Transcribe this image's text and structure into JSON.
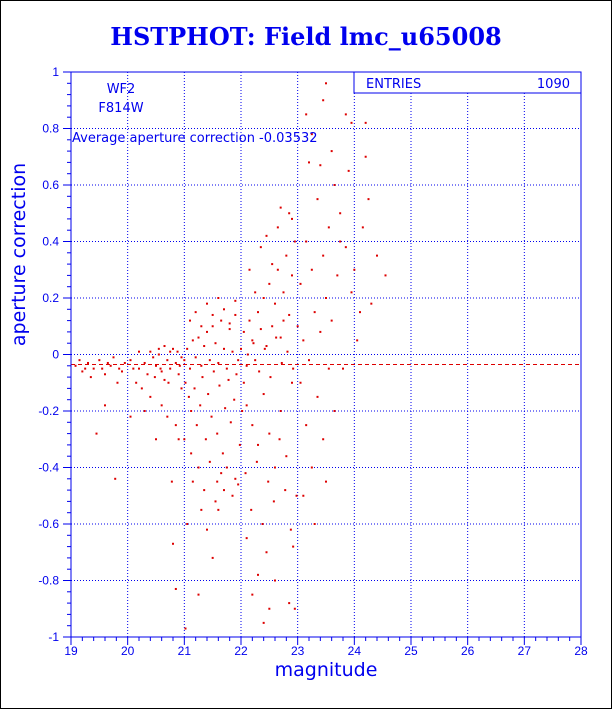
{
  "title": "HSTPHOT: Field lmc_u65008",
  "colors": {
    "axis": "#0000ee",
    "points": "#dd0000",
    "frame": "#000000"
  },
  "chart_data": {
    "type": "scatter",
    "title": "HSTPHOT: Field lmc_u65008",
    "xlabel": "magnitude",
    "ylabel": "aperture correction",
    "xlim": [
      19,
      28
    ],
    "ylim": [
      -1,
      1
    ],
    "x_ticks": [
      "19",
      "20",
      "21",
      "22",
      "23",
      "24",
      "25",
      "26",
      "27",
      "28"
    ],
    "y_ticks": [
      "-1",
      "-0.8",
      "-0.6",
      "-0.4",
      "-0.2",
      "0",
      "0.2",
      "0.4",
      "0.6",
      "0.8",
      "1"
    ],
    "grid": true,
    "camera": "WF2",
    "filter": "F814W",
    "average_label": "Average aperture correction",
    "average_value": -0.03532,
    "stats_box": {
      "label": "ENTRIES",
      "value": "1090"
    },
    "series": [
      {
        "points": [
          [
            19.08,
            -0.04
          ],
          [
            19.2,
            -0.06
          ],
          [
            19.3,
            -0.03
          ],
          [
            19.4,
            -0.05
          ],
          [
            19.5,
            -0.02
          ],
          [
            19.6,
            -0.07
          ],
          [
            19.7,
            -0.04
          ],
          [
            19.75,
            -0.01
          ],
          [
            19.85,
            -0.05
          ],
          [
            19.95,
            -0.03
          ],
          [
            19.15,
            -0.02
          ],
          [
            19.35,
            -0.08
          ],
          [
            19.55,
            -0.05
          ],
          [
            19.65,
            -0.03
          ],
          [
            19.9,
            -0.06
          ],
          [
            19.45,
            -0.28
          ],
          [
            19.78,
            -0.44
          ],
          [
            19.6,
            -0.18
          ],
          [
            19.82,
            -0.1
          ],
          [
            19.25,
            -0.05
          ],
          [
            20.05,
            -0.02
          ],
          [
            20.1,
            -0.05
          ],
          [
            20.2,
            0.01
          ],
          [
            20.3,
            -0.03
          ],
          [
            20.35,
            -0.07
          ],
          [
            20.45,
            -0.01
          ],
          [
            20.5,
            -0.04
          ],
          [
            20.55,
            0.0
          ],
          [
            20.6,
            -0.06
          ],
          [
            20.7,
            -0.02
          ],
          [
            20.75,
            -0.05
          ],
          [
            20.8,
            0.02
          ],
          [
            20.85,
            -0.03
          ],
          [
            20.9,
            -0.07
          ],
          [
            20.95,
            -0.01
          ],
          [
            20.15,
            -0.1
          ],
          [
            20.25,
            -0.12
          ],
          [
            20.4,
            -0.15
          ],
          [
            20.6,
            -0.18
          ],
          [
            20.7,
            -0.22
          ],
          [
            20.85,
            -0.25
          ],
          [
            20.9,
            -0.3
          ],
          [
            20.95,
            -0.12
          ],
          [
            20.65,
            -0.09
          ],
          [
            20.3,
            -0.2
          ],
          [
            20.05,
            -0.22
          ],
          [
            20.5,
            -0.3
          ],
          [
            20.8,
            -0.67
          ],
          [
            20.85,
            -0.83
          ],
          [
            20.78,
            -0.45
          ],
          [
            20.4,
            0.01
          ],
          [
            20.55,
            0.02
          ],
          [
            20.65,
            0.03
          ],
          [
            20.75,
            0.01
          ],
          [
            20.2,
            -0.05
          ],
          [
            20.92,
            -0.04
          ],
          [
            20.88,
            0.01
          ],
          [
            20.72,
            -0.1
          ],
          [
            20.58,
            -0.05
          ],
          [
            20.48,
            -0.08
          ],
          [
            21.0,
            -0.02
          ],
          [
            21.05,
            0.02
          ],
          [
            21.1,
            -0.05
          ],
          [
            21.15,
            0.05
          ],
          [
            21.2,
            -0.01
          ],
          [
            21.25,
            0.06
          ],
          [
            21.3,
            -0.04
          ],
          [
            21.35,
            0.03
          ],
          [
            21.4,
            0.08
          ],
          [
            21.45,
            -0.02
          ],
          [
            21.5,
            0.1
          ],
          [
            21.55,
            0.04
          ],
          [
            21.6,
            -0.03
          ],
          [
            21.65,
            0.12
          ],
          [
            21.7,
            0.02
          ],
          [
            21.75,
            -0.05
          ],
          [
            21.8,
            0.09
          ],
          [
            21.85,
            0.01
          ],
          [
            21.9,
            0.14
          ],
          [
            21.95,
            -0.02
          ],
          [
            21.02,
            -0.1
          ],
          [
            21.08,
            -0.15
          ],
          [
            21.12,
            -0.2
          ],
          [
            21.18,
            -0.12
          ],
          [
            21.22,
            -0.25
          ],
          [
            21.28,
            -0.18
          ],
          [
            21.32,
            -0.08
          ],
          [
            21.38,
            -0.3
          ],
          [
            21.42,
            -0.14
          ],
          [
            21.48,
            -0.22
          ],
          [
            21.52,
            -0.06
          ],
          [
            21.58,
            -0.28
          ],
          [
            21.62,
            -0.11
          ],
          [
            21.68,
            -0.35
          ],
          [
            21.72,
            -0.19
          ],
          [
            21.78,
            -0.09
          ],
          [
            21.82,
            -0.24
          ],
          [
            21.88,
            -0.16
          ],
          [
            21.92,
            -0.07
          ],
          [
            21.98,
            -0.32
          ],
          [
            21.1,
            0.12
          ],
          [
            21.2,
            0.15
          ],
          [
            21.3,
            0.1
          ],
          [
            21.4,
            0.18
          ],
          [
            21.5,
            0.14
          ],
          [
            21.6,
            0.2
          ],
          [
            21.7,
            0.16
          ],
          [
            21.8,
            0.11
          ],
          [
            21.9,
            0.19
          ],
          [
            21.25,
            -0.4
          ],
          [
            21.45,
            -0.38
          ],
          [
            21.65,
            -0.42
          ],
          [
            21.15,
            -0.45
          ],
          [
            21.35,
            -0.48
          ],
          [
            21.55,
            -0.52
          ],
          [
            21.05,
            -0.6
          ],
          [
            21.4,
            -0.62
          ],
          [
            21.25,
            -0.85
          ],
          [
            21.6,
            -0.55
          ],
          [
            21.85,
            -0.5
          ],
          [
            21.5,
            -0.72
          ],
          [
            21.7,
            -0.48
          ],
          [
            21.02,
            -0.97
          ],
          [
            21.9,
            -0.44
          ],
          [
            21.12,
            -0.35
          ],
          [
            21.3,
            -0.55
          ],
          [
            21.75,
            -0.4
          ],
          [
            21.95,
            -0.46
          ],
          [
            21.0,
            -0.3
          ],
          [
            21.58,
            -0.45
          ],
          [
            22.0,
            0.02
          ],
          [
            22.05,
            0.08
          ],
          [
            22.1,
            -0.04
          ],
          [
            22.15,
            0.12
          ],
          [
            22.2,
            0.05
          ],
          [
            22.25,
            -0.02
          ],
          [
            22.3,
            0.15
          ],
          [
            22.35,
            0.09
          ],
          [
            22.4,
            0.2
          ],
          [
            22.45,
            0.03
          ],
          [
            22.5,
            0.25
          ],
          [
            22.55,
            0.1
          ],
          [
            22.6,
            0.18
          ],
          [
            22.65,
            0.3
          ],
          [
            22.7,
            0.06
          ],
          [
            22.75,
            0.22
          ],
          [
            22.8,
            0.35
          ],
          [
            22.85,
            0.14
          ],
          [
            22.9,
            0.28
          ],
          [
            22.95,
            0.4
          ],
          [
            22.05,
            -0.1
          ],
          [
            22.1,
            -0.18
          ],
          [
            22.2,
            -0.25
          ],
          [
            22.3,
            -0.32
          ],
          [
            22.4,
            -0.14
          ],
          [
            22.5,
            -0.28
          ],
          [
            22.6,
            -0.4
          ],
          [
            22.7,
            -0.2
          ],
          [
            22.8,
            -0.36
          ],
          [
            22.9,
            -0.1
          ],
          [
            22.08,
            -0.42
          ],
          [
            22.18,
            -0.55
          ],
          [
            22.28,
            -0.38
          ],
          [
            22.38,
            -0.6
          ],
          [
            22.48,
            -0.45
          ],
          [
            22.58,
            -0.52
          ],
          [
            22.68,
            -0.3
          ],
          [
            22.78,
            -0.48
          ],
          [
            22.88,
            -0.62
          ],
          [
            22.98,
            -0.5
          ],
          [
            22.15,
            0.3
          ],
          [
            22.25,
            0.22
          ],
          [
            22.35,
            0.38
          ],
          [
            22.45,
            0.42
          ],
          [
            22.55,
            0.32
          ],
          [
            22.65,
            0.45
          ],
          [
            22.75,
            0.12
          ],
          [
            22.85,
            0.5
          ],
          [
            22.7,
            0.52
          ],
          [
            22.9,
            0.48
          ],
          [
            22.2,
            -0.85
          ],
          [
            22.3,
            -0.78
          ],
          [
            22.4,
            -0.95
          ],
          [
            22.5,
            -0.9
          ],
          [
            22.6,
            -0.8
          ],
          [
            22.85,
            -0.88
          ],
          [
            22.95,
            -0.9
          ],
          [
            22.45,
            -0.7
          ],
          [
            22.1,
            -0.65
          ],
          [
            22.92,
            -0.68
          ],
          [
            22.02,
            -0.2
          ],
          [
            22.12,
            0.0
          ],
          [
            22.22,
            0.04
          ],
          [
            22.32,
            -0.06
          ],
          [
            22.42,
            0.02
          ],
          [
            22.52,
            -0.08
          ],
          [
            22.62,
            0.06
          ],
          [
            22.72,
            -0.03
          ],
          [
            22.82,
            0.01
          ],
          [
            22.92,
            -0.05
          ],
          [
            23.0,
            0.1
          ],
          [
            23.05,
            0.25
          ],
          [
            23.1,
            0.05
          ],
          [
            23.15,
            0.4
          ],
          [
            23.2,
            -0.02
          ],
          [
            23.25,
            0.3
          ],
          [
            23.3,
            0.15
          ],
          [
            23.35,
            0.55
          ],
          [
            23.4,
            0.08
          ],
          [
            23.45,
            0.35
          ],
          [
            23.5,
            0.2
          ],
          [
            23.55,
            0.45
          ],
          [
            23.6,
            0.12
          ],
          [
            23.65,
            0.6
          ],
          [
            23.7,
            0.28
          ],
          [
            23.75,
            0.5
          ],
          [
            23.8,
            -0.05
          ],
          [
            23.85,
            0.38
          ],
          [
            23.9,
            0.65
          ],
          [
            23.95,
            0.22
          ],
          [
            23.05,
            -0.1
          ],
          [
            23.15,
            -0.25
          ],
          [
            23.25,
            -0.4
          ],
          [
            23.35,
            -0.15
          ],
          [
            23.45,
            -0.3
          ],
          [
            23.55,
            -0.05
          ],
          [
            23.65,
            -0.2
          ],
          [
            23.1,
            -0.5
          ],
          [
            23.3,
            -0.6
          ],
          [
            23.5,
            -0.45
          ],
          [
            23.2,
            0.68
          ],
          [
            23.4,
            0.67
          ],
          [
            23.6,
            0.72
          ],
          [
            23.5,
            0.96
          ],
          [
            23.25,
            0.78
          ],
          [
            23.75,
            0.4
          ],
          [
            23.85,
            0.85
          ],
          [
            23.95,
            0.82
          ],
          [
            23.45,
            0.9
          ],
          [
            23.15,
            0.85
          ],
          [
            24.0,
            0.3
          ],
          [
            24.1,
            0.15
          ],
          [
            24.2,
            0.7
          ],
          [
            24.05,
            0.05
          ],
          [
            24.15,
            0.45
          ],
          [
            24.25,
            0.55
          ],
          [
            24.3,
            0.18
          ],
          [
            24.4,
            0.35
          ],
          [
            24.55,
            0.28
          ],
          [
            24.2,
            0.82
          ]
        ]
      }
    ]
  }
}
